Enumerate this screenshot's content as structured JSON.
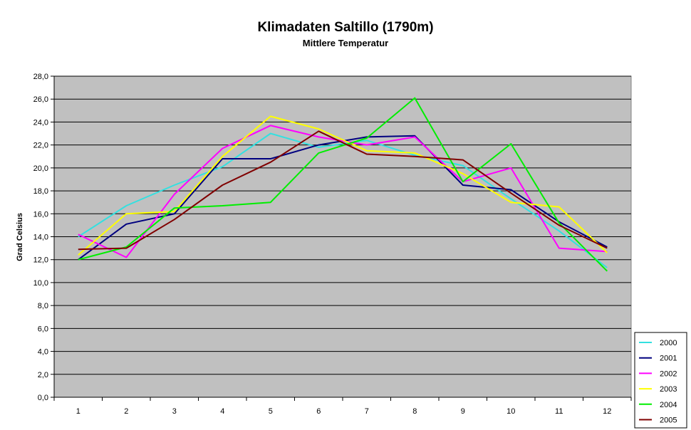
{
  "chart_data": {
    "type": "line",
    "title": "Klimadaten Saltillo (1790m)",
    "subtitle": "Mittlere Temperatur",
    "xlabel": "",
    "ylabel": "Grad Celsius",
    "x": [
      1,
      2,
      3,
      4,
      5,
      6,
      7,
      8,
      9,
      10,
      11,
      12
    ],
    "x_tick_labels": [
      "1",
      "2",
      "3",
      "4",
      "5",
      "6",
      "7",
      "8",
      "9",
      "10",
      "11",
      "12"
    ],
    "ylim": [
      0,
      28
    ],
    "y_ticks": [
      0,
      2,
      4,
      6,
      8,
      10,
      12,
      14,
      16,
      18,
      20,
      22,
      24,
      26,
      28
    ],
    "y_tick_labels": [
      "0,0",
      "2,0",
      "4,0",
      "6,0",
      "8,0",
      "10,0",
      "12,0",
      "14,0",
      "16,0",
      "18,0",
      "20,0",
      "22,0",
      "24,0",
      "26,0",
      "28,0"
    ],
    "grid": true,
    "legend_position": "bottom-right",
    "plot_background": "#c0c0c0",
    "series": [
      {
        "name": "2000",
        "color": "#33e0e0",
        "values": [
          14.0,
          16.7,
          18.5,
          20.1,
          23.0,
          21.8,
          22.4,
          21.1,
          20.2,
          17.3,
          14.5,
          11.3
        ]
      },
      {
        "name": "2001",
        "color": "#00007f",
        "values": [
          12.0,
          15.1,
          16.0,
          20.8,
          20.8,
          22.0,
          22.7,
          22.8,
          18.5,
          18.1,
          15.3,
          13.1
        ]
      },
      {
        "name": "2002",
        "color": "#ff00ff",
        "values": [
          14.2,
          12.2,
          17.7,
          21.7,
          23.7,
          22.7,
          22.0,
          22.7,
          18.8,
          20.0,
          13.0,
          12.7
        ]
      },
      {
        "name": "2003",
        "color": "#ffff00",
        "values": [
          12.4,
          16.0,
          16.2,
          21.0,
          24.5,
          23.4,
          21.5,
          21.3,
          19.5,
          17.0,
          16.6,
          12.6
        ]
      },
      {
        "name": "2004",
        "color": "#00ee00",
        "values": [
          12.0,
          13.1,
          16.5,
          16.7,
          17.0,
          21.3,
          22.6,
          26.1,
          18.8,
          22.1,
          15.2,
          11.0
        ]
      },
      {
        "name": "2005",
        "color": "#800000",
        "values": [
          12.9,
          13.0,
          15.5,
          18.5,
          20.5,
          23.2,
          21.2,
          21.0,
          20.7,
          17.8,
          15.0,
          13.0
        ]
      }
    ]
  }
}
